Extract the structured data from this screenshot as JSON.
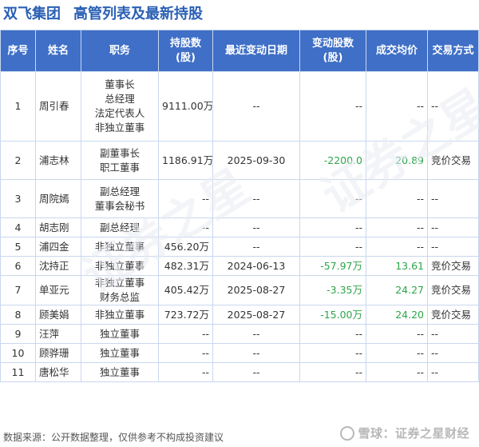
{
  "header": {
    "company": "双飞集团",
    "title": "高管列表及最新持股"
  },
  "columns": [
    "序号",
    "姓名",
    "职务",
    "持股数\n(股)",
    "最近变动日期",
    "变动股数\n(股)",
    "成交均价",
    "交易方式"
  ],
  "rows": [
    {
      "idx": "1",
      "name": "周引春",
      "positions": [
        "董事长",
        "总经理",
        "法定代表人",
        "非独立董事"
      ],
      "shares": "9111.00万",
      "date": "--",
      "change": "--",
      "change_negative": false,
      "price": "--",
      "price_colored": false,
      "method": "--"
    },
    {
      "idx": "2",
      "name": "浦志林",
      "positions": [
        "副董事长",
        "职工董事"
      ],
      "shares": "1186.91万",
      "date": "2025-09-30",
      "change": "-2200.0",
      "change_negative": true,
      "price": "20.89",
      "price_colored": true,
      "method": "竞价交易"
    },
    {
      "idx": "3",
      "name": "周院嫣",
      "positions": [
        "副总经理",
        "董事会秘书"
      ],
      "shares": "--",
      "date": "--",
      "change": "--",
      "change_negative": false,
      "price": "--",
      "price_colored": false,
      "method": "--"
    },
    {
      "idx": "4",
      "name": "胡志刚",
      "positions": [
        "副总经理"
      ],
      "shares": "--",
      "date": "--",
      "change": "--",
      "change_negative": false,
      "price": "--",
      "price_colored": false,
      "method": "--"
    },
    {
      "idx": "5",
      "name": "浦四金",
      "positions": [
        "非独立董事"
      ],
      "shares": "456.20万",
      "date": "--",
      "change": "--",
      "change_negative": false,
      "price": "--",
      "price_colored": false,
      "method": "--"
    },
    {
      "idx": "6",
      "name": "沈持正",
      "positions": [
        "非独立董事"
      ],
      "shares": "482.31万",
      "date": "2024-06-13",
      "change": "-57.97万",
      "change_negative": true,
      "price": "13.61",
      "price_colored": true,
      "method": "竞价交易"
    },
    {
      "idx": "7",
      "name": "单亚元",
      "positions": [
        "非独立董事",
        "财务总监"
      ],
      "shares": "405.42万",
      "date": "2025-08-27",
      "change": "-3.35万",
      "change_negative": true,
      "price": "24.27",
      "price_colored": true,
      "method": "竞价交易"
    },
    {
      "idx": "8",
      "name": "顾美娟",
      "positions": [
        "非独立董事"
      ],
      "shares": "723.72万",
      "date": "2025-08-27",
      "change": "-15.00万",
      "change_negative": true,
      "price": "24.20",
      "price_colored": true,
      "method": "竞价交易"
    },
    {
      "idx": "9",
      "name": "汪萍",
      "positions": [
        "独立董事"
      ],
      "shares": "--",
      "date": "--",
      "change": "--",
      "change_negative": false,
      "price": "--",
      "price_colored": false,
      "method": "--"
    },
    {
      "idx": "10",
      "name": "顾骅珊",
      "positions": [
        "独立董事"
      ],
      "shares": "--",
      "date": "--",
      "change": "--",
      "change_negative": false,
      "price": "--",
      "price_colored": false,
      "method": "--"
    },
    {
      "idx": "11",
      "name": "唐松华",
      "positions": [
        "独立董事"
      ],
      "shares": "--",
      "date": "--",
      "change": "--",
      "change_negative": false,
      "price": "--",
      "price_colored": false,
      "method": "--"
    }
  ],
  "watermark_text": "证券之星",
  "footer": {
    "source": "数据来源：公开数据整理，仅供参考不构成投资建议",
    "brand": "雪球：证券之星财经",
    "brand_icon": "snowball-icon"
  },
  "colors": {
    "title": "#2a5fb4",
    "header_bg": "#3f6fc6",
    "negative": "#2ea54a",
    "border": "#c9d7ee"
  }
}
